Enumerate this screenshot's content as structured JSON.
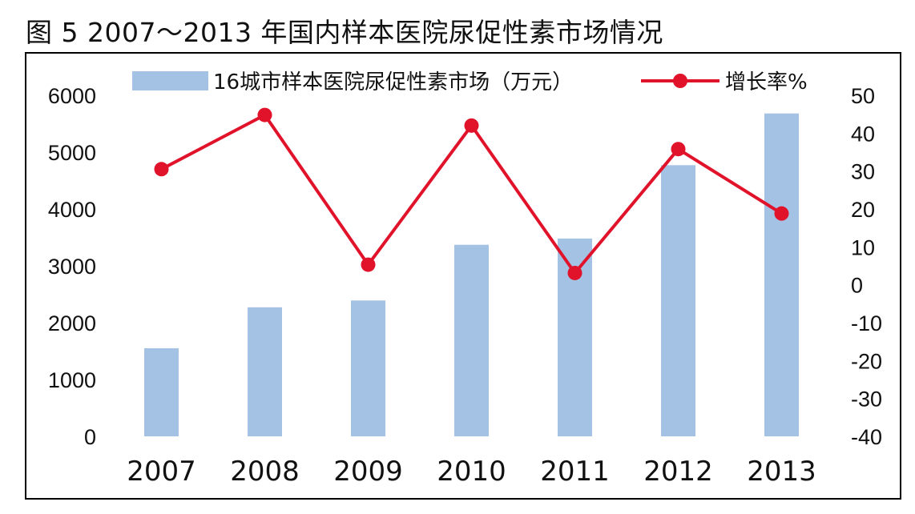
{
  "title": "图 5  2007～2013 年国内样本医院尿促性素市场情况",
  "colors": {
    "bar": "#a4c2e4",
    "line": "#e0132b",
    "frame": "#000000"
  },
  "chart_data": {
    "type": "bar+line",
    "categories": [
      "2007",
      "2008",
      "2009",
      "2010",
      "2011",
      "2012",
      "2013"
    ],
    "series": [
      {
        "name": "16城市样本医院尿促性素市场（万元）",
        "type": "bar",
        "axis": "left",
        "values": [
          1550,
          2270,
          2390,
          3370,
          3480,
          4770,
          5680
        ]
      },
      {
        "name": "增长率%",
        "type": "line",
        "axis": "right",
        "values": [
          30.5,
          44.8,
          5.3,
          42.0,
          3.1,
          35.8,
          18.8
        ]
      }
    ],
    "y_left": {
      "ylim": [
        0,
        6000
      ],
      "ticks": [
        "0",
        "1000",
        "2000",
        "3000",
        "4000",
        "5000",
        "6000"
      ]
    },
    "y_right": {
      "ylim": [
        -40,
        50
      ],
      "ticks": [
        "-40",
        "-30",
        "-20",
        "-10",
        "0",
        "10",
        "20",
        "30",
        "40",
        "50"
      ]
    },
    "legend_position": "top",
    "grid": false
  }
}
